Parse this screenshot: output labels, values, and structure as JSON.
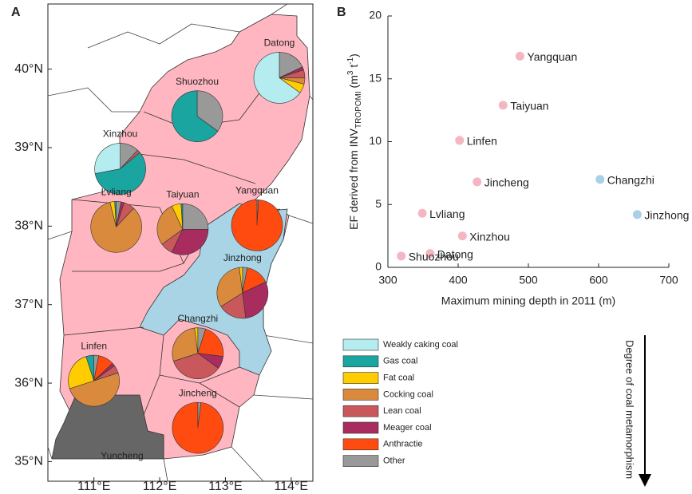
{
  "chart_data": [
    {
      "type": "map",
      "panel": "A",
      "xlim": [
        110.3,
        114.33
      ],
      "ylim": [
        34.75,
        40.83
      ],
      "xticks": [
        {
          "value": 111,
          "label": "111°E"
        },
        {
          "value": 112,
          "label": "112°E"
        },
        {
          "value": 113,
          "label": "113°E"
        },
        {
          "value": 114,
          "label": "114°E"
        }
      ],
      "yticks": [
        {
          "value": 35,
          "label": "35°N"
        },
        {
          "value": 36,
          "label": "36°N"
        },
        {
          "value": 37,
          "label": "37°N"
        },
        {
          "value": 38,
          "label": "38°N"
        },
        {
          "value": 39,
          "label": "39°N"
        },
        {
          "value": 40,
          "label": "40°N"
        }
      ],
      "coal_types": [
        {
          "name": "Weakly caking coal",
          "color": "#b5ecef"
        },
        {
          "name": "Gas coal",
          "color": "#1aa5a0"
        },
        {
          "name": "Fat coal",
          "color": "#ffcc00"
        },
        {
          "name": "Cocking coal",
          "color": "#d98a3d"
        },
        {
          "name": "Lean coal",
          "color": "#c8585b"
        },
        {
          "name": "Meager coal",
          "color": "#a82c5e"
        },
        {
          "name": "Anthractie",
          "color": "#ff4b10"
        },
        {
          "name": "Other",
          "color": "#999999"
        }
      ],
      "legend_arrow": "Degree of coal metamorphism",
      "pies": [
        {
          "name": "Datong",
          "lon": 113.82,
          "lat": 39.89,
          "values": [
            65,
            0,
            6,
            4,
            5,
            2,
            0,
            18
          ]
        },
        {
          "name": "Shuozhou",
          "lon": 112.57,
          "lat": 39.4,
          "values": [
            0,
            65,
            0,
            0,
            0,
            0,
            0,
            35
          ]
        },
        {
          "name": "Xinzhou",
          "lon": 111.4,
          "lat": 38.73,
          "values": [
            28,
            58,
            0,
            0,
            2,
            0,
            0,
            12
          ]
        },
        {
          "name": "Lvliang",
          "lon": 111.34,
          "lat": 37.99,
          "values": [
            0,
            1,
            3,
            84,
            7,
            2,
            0,
            3
          ]
        },
        {
          "name": "Taiyuan",
          "lon": 112.35,
          "lat": 37.96,
          "values": [
            0,
            1,
            6,
            28,
            8,
            32,
            0,
            25
          ]
        },
        {
          "name": "Yangquan",
          "lon": 113.48,
          "lat": 38.01,
          "values": [
            0,
            0,
            0,
            0,
            0,
            0,
            99,
            1
          ]
        },
        {
          "name": "Jinzhong",
          "lon": 113.26,
          "lat": 37.15,
          "values": [
            0,
            0,
            2,
            32,
            18,
            30,
            15,
            3
          ]
        },
        {
          "name": "Changzhi",
          "lon": 112.58,
          "lat": 36.38,
          "values": [
            0,
            0,
            2,
            28,
            35,
            8,
            22,
            5
          ]
        },
        {
          "name": "Linfen",
          "lon": 111.0,
          "lat": 36.03,
          "values": [
            0,
            5,
            25,
            50,
            5,
            2,
            10,
            3
          ]
        },
        {
          "name": "Jincheng",
          "lon": 112.58,
          "lat": 35.43,
          "values": [
            0,
            0,
            0,
            0,
            0,
            0,
            98,
            2
          ]
        }
      ],
      "annotation": "Yuncheng"
    },
    {
      "type": "scatter",
      "panel": "B",
      "xlabel": "Maximum mining depth in 2011 (m)",
      "ylabel_parts": [
        "EF derived from INV",
        "TROPOMI",
        " (m",
        "3",
        " t",
        "-1",
        ")"
      ],
      "xlim": [
        300,
        700
      ],
      "xticks": [
        300,
        400,
        500,
        600,
        700
      ],
      "ylim": [
        0,
        20
      ],
      "yticks": [
        0,
        5,
        10,
        15,
        20
      ],
      "labels": [
        "Yangquan",
        "Taiyuan",
        "Linfen",
        "Jincheng",
        "Changzhi",
        "Jinzhong",
        "Lvliang",
        "Xinzhou",
        "Datong",
        "Shuozhou"
      ],
      "x": [
        488,
        464,
        402,
        427,
        602,
        655,
        349,
        406,
        360,
        319
      ],
      "y": [
        16.8,
        12.9,
        10.1,
        6.8,
        7.0,
        4.2,
        4.3,
        2.5,
        1.1,
        0.9
      ],
      "colors": [
        "#f4b6c2",
        "#f4b6c2",
        "#f4b6c2",
        "#f4b6c2",
        "#a8d0e6",
        "#a8d0e6",
        "#f4b6c2",
        "#f4b6c2",
        "#f4b6c2",
        "#f4b6c2"
      ]
    }
  ]
}
